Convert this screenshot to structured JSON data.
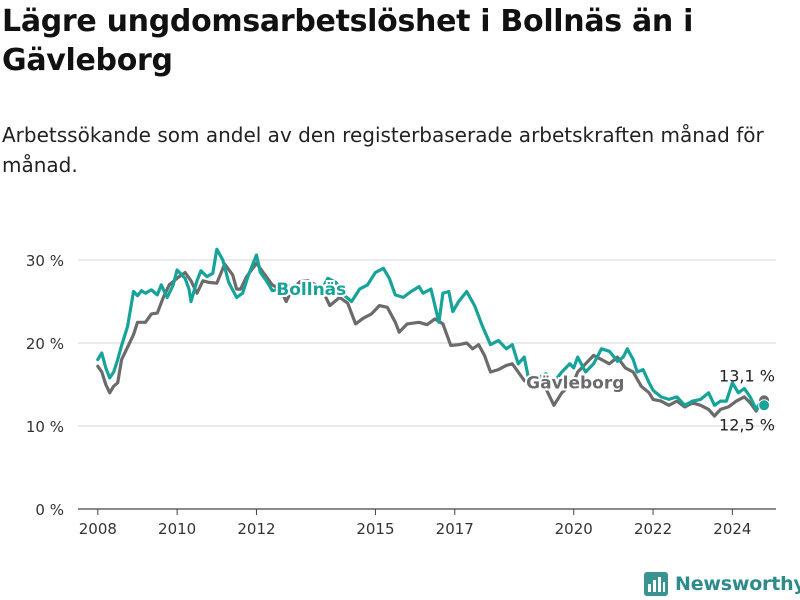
{
  "header": {
    "title": "Lägre ungdomsarbetslöshet i Bollnäs än i Gävleborg",
    "subtitle": "Arbetssökande som andel av den registerbaserade arbetskraften månad för månad."
  },
  "logo": {
    "text": "Newsworthy",
    "icon": "bar-chart-icon",
    "color": "#3a9393"
  },
  "chart_data": {
    "type": "line",
    "title": "Lägre ungdomsarbetslöshet i Bollnäs än i Gävleborg",
    "subtitle": "Arbetssökande som andel av den registerbaserade arbetskraften månad för månad.",
    "ylim": [
      0,
      30
    ],
    "y_ticks": [
      0,
      10,
      20,
      30
    ],
    "y_tick_labels": [
      "0 %",
      "10 %",
      "20 %",
      "30 %"
    ],
    "x_ticks": [
      2008,
      2010,
      2012,
      2015,
      2017,
      2020,
      2022,
      2024
    ],
    "x_range": [
      2007.5,
      2025.1
    ],
    "grid": true,
    "legend": "inline labels",
    "series": [
      {
        "name": "Gävleborg",
        "color": "#6b6b6b",
        "label_at": [
          2018.8,
          14.5
        ],
        "end_label": "13,1 %",
        "points": [
          [
            2008.0,
            17.2
          ],
          [
            2008.1,
            16.5
          ],
          [
            2008.2,
            15.0
          ],
          [
            2008.3,
            14.0
          ],
          [
            2008.4,
            14.8
          ],
          [
            2008.5,
            15.2
          ],
          [
            2008.6,
            18.0
          ],
          [
            2008.75,
            19.5
          ],
          [
            2008.9,
            21.0
          ],
          [
            2009.0,
            22.5
          ],
          [
            2009.2,
            22.5
          ],
          [
            2009.35,
            23.5
          ],
          [
            2009.5,
            23.6
          ],
          [
            2009.65,
            25.5
          ],
          [
            2009.8,
            27.0
          ],
          [
            2010.0,
            27.8
          ],
          [
            2010.2,
            28.5
          ],
          [
            2010.35,
            27.5
          ],
          [
            2010.5,
            26.0
          ],
          [
            2010.65,
            27.5
          ],
          [
            2010.8,
            27.3
          ],
          [
            2011.0,
            27.2
          ],
          [
            2011.2,
            29.5
          ],
          [
            2011.4,
            28.2
          ],
          [
            2011.5,
            26.5
          ],
          [
            2011.6,
            26.5
          ],
          [
            2011.75,
            28.0
          ],
          [
            2012.0,
            29.6
          ],
          [
            2012.2,
            28.3
          ],
          [
            2012.4,
            27.0
          ],
          [
            2012.6,
            26.5
          ],
          [
            2012.75,
            25.0
          ],
          [
            2012.9,
            26.5
          ],
          [
            2013.1,
            27.4
          ],
          [
            2013.3,
            27.5
          ],
          [
            2013.5,
            27.0
          ],
          [
            2013.7,
            26.0
          ],
          [
            2013.85,
            24.5
          ],
          [
            2014.1,
            25.5
          ],
          [
            2014.3,
            24.8
          ],
          [
            2014.5,
            22.3
          ],
          [
            2014.7,
            23.0
          ],
          [
            2014.9,
            23.5
          ],
          [
            2015.1,
            24.5
          ],
          [
            2015.3,
            24.3
          ],
          [
            2015.5,
            22.5
          ],
          [
            2015.6,
            21.3
          ],
          [
            2015.8,
            22.3
          ],
          [
            2016.1,
            22.5
          ],
          [
            2016.3,
            22.2
          ],
          [
            2016.5,
            22.9
          ],
          [
            2016.7,
            22.3
          ],
          [
            2016.9,
            19.7
          ],
          [
            2017.1,
            19.8
          ],
          [
            2017.3,
            20.0
          ],
          [
            2017.45,
            19.3
          ],
          [
            2017.6,
            19.8
          ],
          [
            2017.75,
            18.5
          ],
          [
            2017.9,
            16.5
          ],
          [
            2018.1,
            16.8
          ],
          [
            2018.3,
            17.3
          ],
          [
            2018.45,
            17.5
          ],
          [
            2018.6,
            16.5
          ],
          [
            2018.75,
            15.5
          ],
          [
            2018.85,
            15.2
          ],
          [
            2018.95,
            15.0
          ],
          [
            2019.2,
            15.5
          ],
          [
            2019.5,
            12.5
          ],
          [
            2019.7,
            14.0
          ],
          [
            2020.0,
            15.3
          ],
          [
            2020.1,
            16.5
          ],
          [
            2020.3,
            17.5
          ],
          [
            2020.5,
            18.5
          ],
          [
            2020.7,
            18.0
          ],
          [
            2020.9,
            17.5
          ],
          [
            2021.1,
            18.3
          ],
          [
            2021.3,
            17.0
          ],
          [
            2021.5,
            16.5
          ],
          [
            2021.7,
            14.8
          ],
          [
            2021.9,
            14.0
          ],
          [
            2022.0,
            13.2
          ],
          [
            2022.2,
            13.0
          ],
          [
            2022.4,
            12.5
          ],
          [
            2022.6,
            13.0
          ],
          [
            2022.8,
            12.3
          ],
          [
            2023.0,
            12.8
          ],
          [
            2023.2,
            12.5
          ],
          [
            2023.4,
            12.0
          ],
          [
            2023.55,
            11.2
          ],
          [
            2023.7,
            12.0
          ],
          [
            2023.9,
            12.3
          ],
          [
            2024.1,
            13.0
          ],
          [
            2024.3,
            13.5
          ],
          [
            2024.45,
            12.8
          ],
          [
            2024.6,
            11.8
          ],
          [
            2024.7,
            12.8
          ],
          [
            2024.8,
            13.1
          ]
        ]
      },
      {
        "name": "Bollnäs",
        "color": "#17a39a",
        "label_at": [
          2012.5,
          25.8
        ],
        "end_label": "12,5 %",
        "points": [
          [
            2008.0,
            18.0
          ],
          [
            2008.1,
            18.8
          ],
          [
            2008.2,
            17.0
          ],
          [
            2008.3,
            15.8
          ],
          [
            2008.4,
            16.5
          ],
          [
            2008.5,
            18.0
          ],
          [
            2008.6,
            19.7
          ],
          [
            2008.75,
            22.0
          ],
          [
            2008.9,
            26.2
          ],
          [
            2009.0,
            25.7
          ],
          [
            2009.1,
            26.3
          ],
          [
            2009.2,
            26.0
          ],
          [
            2009.35,
            26.4
          ],
          [
            2009.5,
            25.8
          ],
          [
            2009.6,
            27.0
          ],
          [
            2009.75,
            25.5
          ],
          [
            2009.9,
            27.0
          ],
          [
            2010.0,
            28.8
          ],
          [
            2010.2,
            27.8
          ],
          [
            2010.3,
            26.5
          ],
          [
            2010.35,
            25.0
          ],
          [
            2010.5,
            27.5
          ],
          [
            2010.6,
            28.7
          ],
          [
            2010.75,
            28.0
          ],
          [
            2010.9,
            28.4
          ],
          [
            2011.0,
            31.3
          ],
          [
            2011.15,
            30.0
          ],
          [
            2011.3,
            27.3
          ],
          [
            2011.5,
            25.5
          ],
          [
            2011.65,
            26.0
          ],
          [
            2011.8,
            28.2
          ],
          [
            2012.0,
            30.6
          ],
          [
            2012.1,
            28.5
          ],
          [
            2012.25,
            27.5
          ],
          [
            2012.4,
            26.3
          ],
          [
            2012.6,
            26.5
          ],
          [
            2012.75,
            27.0
          ],
          [
            2013.0,
            26.5
          ],
          [
            2013.3,
            26.3
          ],
          [
            2013.6,
            26.0
          ],
          [
            2013.8,
            27.8
          ],
          [
            2014.0,
            27.3
          ],
          [
            2014.2,
            25.8
          ],
          [
            2014.4,
            25.0
          ],
          [
            2014.6,
            26.5
          ],
          [
            2014.8,
            27.0
          ],
          [
            2015.0,
            28.5
          ],
          [
            2015.2,
            29.0
          ],
          [
            2015.35,
            27.8
          ],
          [
            2015.5,
            25.8
          ],
          [
            2015.7,
            25.5
          ],
          [
            2015.9,
            26.2
          ],
          [
            2016.1,
            26.8
          ],
          [
            2016.2,
            26.0
          ],
          [
            2016.4,
            26.5
          ],
          [
            2016.6,
            22.5
          ],
          [
            2016.7,
            26.0
          ],
          [
            2016.85,
            26.2
          ],
          [
            2016.95,
            23.8
          ],
          [
            2017.1,
            25.0
          ],
          [
            2017.3,
            26.2
          ],
          [
            2017.5,
            24.5
          ],
          [
            2017.7,
            22.0
          ],
          [
            2017.9,
            19.8
          ],
          [
            2018.1,
            20.3
          ],
          [
            2018.3,
            19.3
          ],
          [
            2018.45,
            19.8
          ],
          [
            2018.6,
            17.5
          ],
          [
            2018.75,
            18.3
          ],
          [
            2018.85,
            16.0
          ],
          [
            2018.95,
            15.3
          ],
          [
            2019.1,
            15.8
          ],
          [
            2019.3,
            16.3
          ],
          [
            2019.5,
            15.3
          ],
          [
            2019.7,
            16.5
          ],
          [
            2019.9,
            17.5
          ],
          [
            2020.0,
            17.0
          ],
          [
            2020.1,
            18.3
          ],
          [
            2020.3,
            16.5
          ],
          [
            2020.5,
            17.5
          ],
          [
            2020.7,
            19.3
          ],
          [
            2020.9,
            19.0
          ],
          [
            2021.1,
            17.8
          ],
          [
            2021.25,
            18.3
          ],
          [
            2021.35,
            19.3
          ],
          [
            2021.5,
            18.0
          ],
          [
            2021.6,
            16.5
          ],
          [
            2021.75,
            16.8
          ],
          [
            2021.9,
            15.2
          ],
          [
            2022.0,
            14.3
          ],
          [
            2022.2,
            13.5
          ],
          [
            2022.4,
            13.2
          ],
          [
            2022.6,
            13.5
          ],
          [
            2022.8,
            12.5
          ],
          [
            2023.0,
            13.0
          ],
          [
            2023.2,
            13.2
          ],
          [
            2023.4,
            14.0
          ],
          [
            2023.55,
            12.5
          ],
          [
            2023.7,
            13.0
          ],
          [
            2023.85,
            13.0
          ],
          [
            2024.0,
            15.2
          ],
          [
            2024.15,
            14.0
          ],
          [
            2024.3,
            14.5
          ],
          [
            2024.45,
            13.5
          ],
          [
            2024.6,
            12.0
          ],
          [
            2024.7,
            12.8
          ],
          [
            2024.8,
            12.5
          ]
        ]
      }
    ]
  }
}
